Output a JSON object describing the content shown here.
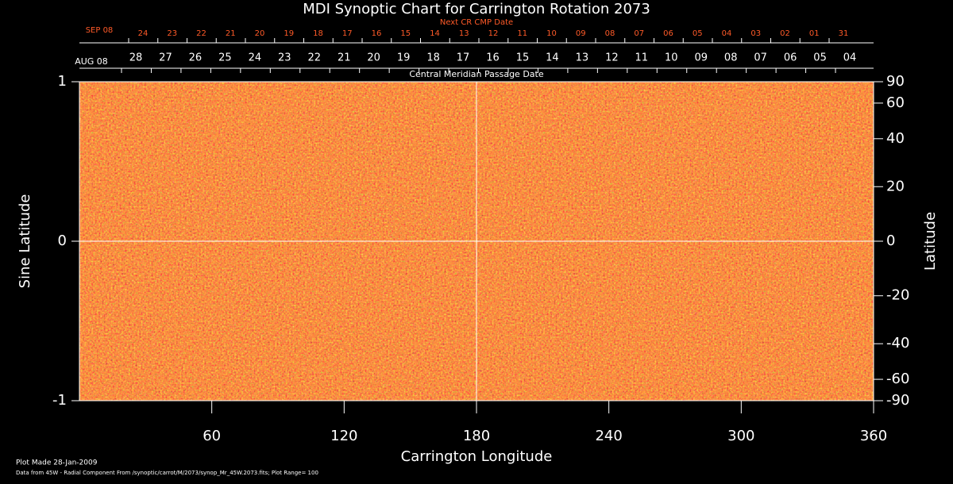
{
  "chart_data": {
    "type": "synoptic-map",
    "title": "MDI Synoptic Chart for Carrington Rotation 2073",
    "xlabel": "Carrington Longitude",
    "ylabel": "Sine Latitude",
    "y2label": "Latitude",
    "xlim": [
      0,
      360
    ],
    "xticks": [
      60,
      120,
      180,
      240,
      300,
      360
    ],
    "ylim": [
      -1,
      1
    ],
    "yticks": [
      -1,
      0,
      1
    ],
    "y2lim": [
      -90,
      90
    ],
    "y2scale": "sine",
    "y2ticks": [
      -90,
      -60,
      -40,
      -20,
      0,
      20,
      40,
      60,
      90
    ],
    "cmp_axis_label": "Central Meridian Passage Date",
    "cmp_start": "AUG 08",
    "cmp_dates": [
      "28",
      "27",
      "26",
      "25",
      "24",
      "23",
      "22",
      "21",
      "20",
      "19",
      "18",
      "17",
      "16",
      "15",
      "14",
      "13",
      "12",
      "11",
      "10",
      "09",
      "08",
      "07",
      "06",
      "05",
      "04"
    ],
    "next_axis_label": "Next CR CMP Date",
    "next_start": "SEP 08",
    "next_dates": [
      "24",
      "23",
      "22",
      "21",
      "20",
      "19",
      "18",
      "17",
      "16",
      "15",
      "14",
      "13",
      "12",
      "11",
      "10",
      "09",
      "08",
      "07",
      "06",
      "05",
      "04",
      "03",
      "02",
      "01",
      "31"
    ],
    "next_color": "#ff5a28",
    "footer": [
      "Plot Made 28-Jan-2009",
      "Data from 45W - Radial Component From /synoptic/carrot/M/2073/synop_Mr_45W.2073.fits; Plot Range=  100"
    ]
  }
}
